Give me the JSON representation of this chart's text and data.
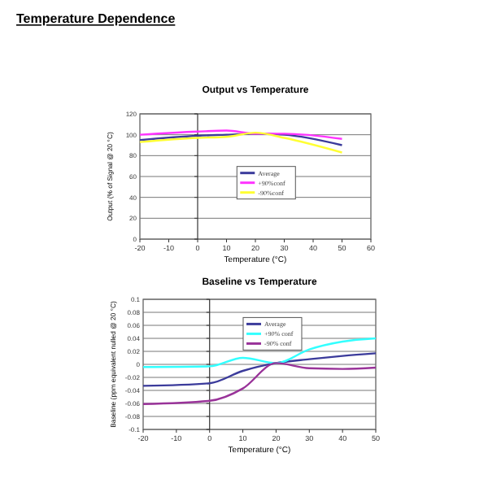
{
  "chart_data": [
    {
      "type": "line",
      "title": "Output vs Temperature",
      "xlabel": "Temperature (°C)",
      "ylabel": "Output (% of Signal @ 20 °C)",
      "annotations": [
        "Temperature Dependence"
      ],
      "x": [
        -20,
        0,
        10,
        20,
        30,
        50
      ],
      "xlim": [
        -20,
        60
      ],
      "xticks": [
        -20,
        -10,
        0,
        10,
        20,
        30,
        40,
        50,
        60
      ],
      "ylim": [
        0,
        120
      ],
      "yticks": [
        0,
        20,
        40,
        60,
        80,
        100,
        120
      ],
      "grid": "y",
      "legend": "center",
      "series": [
        {
          "name": "Average",
          "color": "#3b3b9b",
          "values": [
            95,
            99,
            100,
            101,
            100,
            90
          ]
        },
        {
          "name": "+90%conf",
          "color": "#ff33ff",
          "values": [
            100,
            103,
            104,
            101,
            101,
            96
          ]
        },
        {
          "name": "-90%conf",
          "color": "#ffff33",
          "values": [
            93,
            97,
            98,
            102,
            97,
            83
          ]
        }
      ]
    },
    {
      "type": "line",
      "title": "Baseline vs Temperature",
      "xlabel": "Temperature (°C)",
      "ylabel": "Baseline (ppm equivalent nulled @ 20 °C)",
      "x": [
        -20,
        0,
        10,
        20,
        30,
        40,
        50
      ],
      "xlim": [
        -20,
        50
      ],
      "xticks": [
        -20,
        -10,
        0,
        10,
        20,
        30,
        40,
        50
      ],
      "ylim": [
        -0.1,
        0.1
      ],
      "yticks": [
        {
          "value": -0.1,
          "label": "-0.1"
        },
        -0.08,
        -0.06,
        -0.04,
        -0.02,
        0,
        0.02,
        0.04,
        0.06,
        0.08,
        0.1
      ],
      "grid": "y",
      "legend": "top",
      "series": [
        {
          "name": "Average",
          "color": "#3b3b9b",
          "values": [
            -0.033,
            -0.029,
            -0.01,
            0.002,
            0.008,
            0.013,
            0.017
          ]
        },
        {
          "name": "+90% conf",
          "color": "#33ffff",
          "values": [
            -0.004,
            -0.003,
            0.01,
            0.002,
            0.023,
            0.035,
            0.04
          ]
        },
        {
          "name": "-90% conf",
          "color": "#993399",
          "values": [
            -0.061,
            -0.056,
            -0.037,
            0.002,
            -0.006,
            -0.007,
            -0.005
          ]
        }
      ]
    }
  ]
}
